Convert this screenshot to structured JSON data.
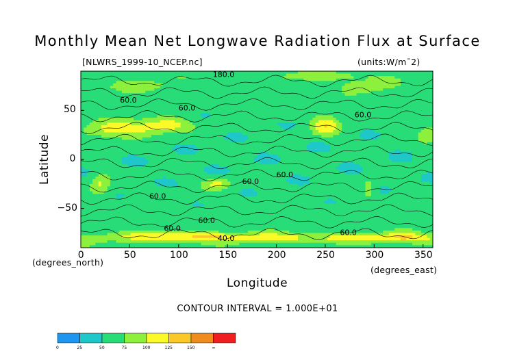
{
  "chart_data": {
    "type": "heatmap",
    "title": "Monthly Mean Net Longwave Radiation Flux at Surface",
    "file_label": "[NLWRS_1999-10_NCEP.nc]",
    "units_label": "(units:W/m^2)",
    "xlabel": "Longitude",
    "ylabel": "Latitude",
    "x_unit_label": "(degrees_east)",
    "y_unit_label": "(degrees_north)",
    "xlim": [
      0,
      360
    ],
    "ylim": [
      -90,
      90
    ],
    "x_ticks": [
      0,
      50,
      100,
      150,
      200,
      250,
      300,
      350
    ],
    "y_ticks": [
      50,
      0,
      -50
    ],
    "contour_interval_text": "CONTOUR INTERVAL = 1.000E+01",
    "contour_labels": [
      "60.0",
      "60.0",
      "60.0",
      "60.0",
      "60.0",
      "60.0",
      "60.0",
      "60.0",
      "60.0",
      "40.0",
      "180.0"
    ],
    "colorbar": {
      "ticks": [
        "0",
        "25",
        "50",
        "75",
        "100",
        "125",
        "150",
        "∞"
      ],
      "colors": [
        "#1e96f0",
        "#1ec8c8",
        "#28dc78",
        "#8cf03c",
        "#fafa28",
        "#fac828",
        "#f08c1e",
        "#f01e1e"
      ]
    }
  }
}
